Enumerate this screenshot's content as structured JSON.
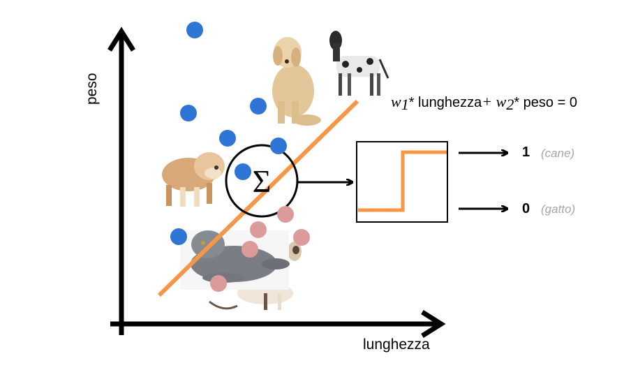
{
  "axes": {
    "y_label": "peso",
    "x_label": "lunghezza"
  },
  "equation": {
    "w1": "w",
    "w1_sub": "1",
    "term1": "* lunghezza",
    "plus": "+",
    "w2": "w",
    "w2_sub": "2",
    "term2": "* peso = 0"
  },
  "neuron": {
    "symbol": "Σ"
  },
  "outputs": [
    {
      "value": "1",
      "note": "(cane)"
    },
    {
      "value": "0",
      "note": "(gatto)"
    }
  ],
  "colors": {
    "dog_points": "#2e75d6",
    "cat_points": "#dc9b9b",
    "boundary": "#f79646",
    "axes": "#000000"
  },
  "icons": [
    "labrador-photo",
    "great-dane-photo",
    "bulldog-photo",
    "persian-cat-photo",
    "siamese-cat-photo"
  ]
}
